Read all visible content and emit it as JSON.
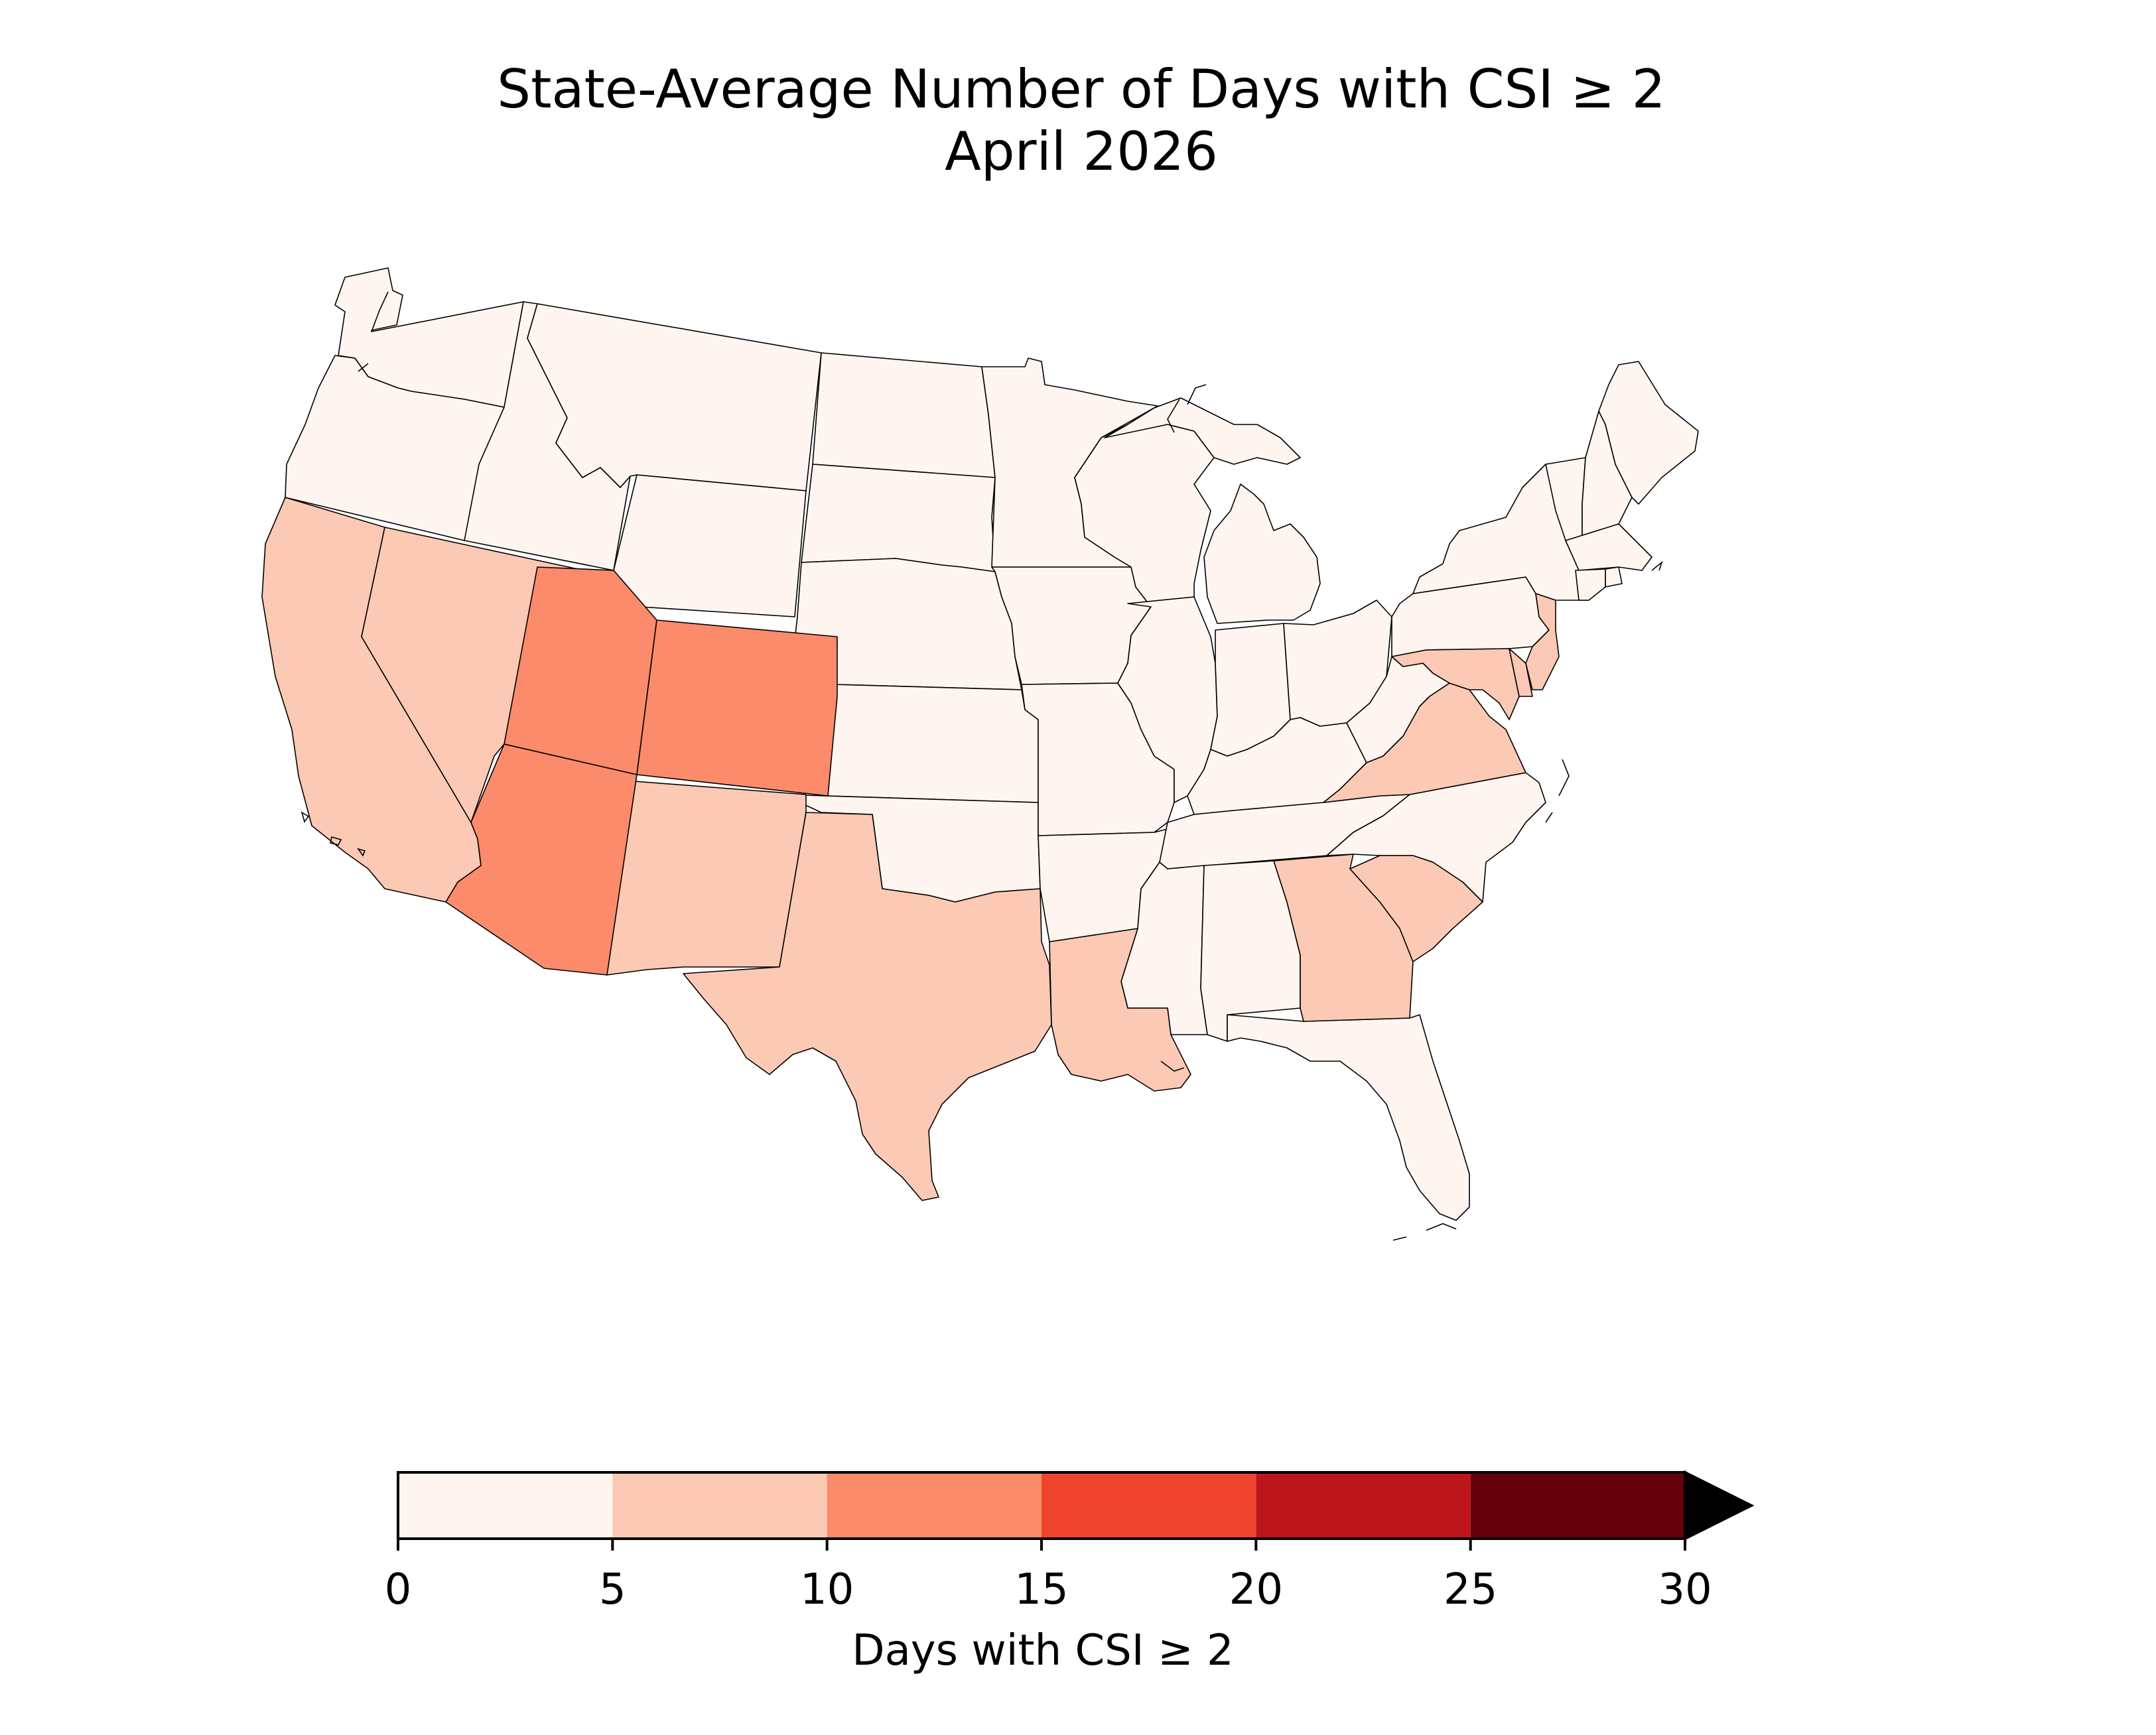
{
  "title": {
    "line1": "State-Average Number of Days with CSI ≥ 2",
    "line2": "April 2026"
  },
  "colorbar": {
    "label": "Days with CSI ≥ 2",
    "ticks": [
      "0",
      "5",
      "10",
      "15",
      "20",
      "25",
      "30"
    ],
    "bins": [
      {
        "range": [
          0,
          5
        ],
        "color": "#fff5f0"
      },
      {
        "range": [
          5,
          10
        ],
        "color": "#fcc9b4"
      },
      {
        "range": [
          10,
          15
        ],
        "color": "#fb8b6b"
      },
      {
        "range": [
          15,
          20
        ],
        "color": "#ef452f"
      },
      {
        "range": [
          20,
          25
        ],
        "color": "#bc151b"
      },
      {
        "range": [
          25,
          30
        ],
        "color": "#67000d"
      }
    ],
    "extend_color": "#000000"
  },
  "map_data": {
    "type": "choropleth",
    "region": "contiguous United States",
    "states": [
      {
        "state": "WA",
        "bin": "0-5"
      },
      {
        "state": "OR",
        "bin": "0-5"
      },
      {
        "state": "ID",
        "bin": "0-5"
      },
      {
        "state": "MT",
        "bin": "0-5"
      },
      {
        "state": "WY",
        "bin": "0-5"
      },
      {
        "state": "ND",
        "bin": "0-5"
      },
      {
        "state": "SD",
        "bin": "0-5"
      },
      {
        "state": "NE",
        "bin": "0-5"
      },
      {
        "state": "KS",
        "bin": "0-5"
      },
      {
        "state": "OK",
        "bin": "0-5"
      },
      {
        "state": "MN",
        "bin": "0-5"
      },
      {
        "state": "IA",
        "bin": "0-5"
      },
      {
        "state": "MO",
        "bin": "0-5"
      },
      {
        "state": "AR",
        "bin": "0-5"
      },
      {
        "state": "WI",
        "bin": "0-5"
      },
      {
        "state": "IL",
        "bin": "0-5"
      },
      {
        "state": "MI",
        "bin": "0-5"
      },
      {
        "state": "IN",
        "bin": "0-5"
      },
      {
        "state": "OH",
        "bin": "0-5"
      },
      {
        "state": "KY",
        "bin": "0-5"
      },
      {
        "state": "TN",
        "bin": "0-5"
      },
      {
        "state": "MS",
        "bin": "0-5"
      },
      {
        "state": "AL",
        "bin": "0-5"
      },
      {
        "state": "FL",
        "bin": "0-5"
      },
      {
        "state": "NC",
        "bin": "0-5"
      },
      {
        "state": "WV",
        "bin": "0-5"
      },
      {
        "state": "PA",
        "bin": "0-5"
      },
      {
        "state": "NY",
        "bin": "0-5"
      },
      {
        "state": "VT",
        "bin": "0-5"
      },
      {
        "state": "NH",
        "bin": "0-5"
      },
      {
        "state": "ME",
        "bin": "0-5"
      },
      {
        "state": "MA",
        "bin": "0-5"
      },
      {
        "state": "CT",
        "bin": "0-5"
      },
      {
        "state": "RI",
        "bin": "0-5"
      },
      {
        "state": "CA",
        "bin": "5-10"
      },
      {
        "state": "NV",
        "bin": "5-10"
      },
      {
        "state": "NM",
        "bin": "5-10"
      },
      {
        "state": "TX",
        "bin": "5-10"
      },
      {
        "state": "LA",
        "bin": "5-10"
      },
      {
        "state": "GA",
        "bin": "5-10"
      },
      {
        "state": "SC",
        "bin": "5-10"
      },
      {
        "state": "VA",
        "bin": "5-10"
      },
      {
        "state": "MD",
        "bin": "5-10"
      },
      {
        "state": "DE",
        "bin": "5-10"
      },
      {
        "state": "NJ",
        "bin": "5-10"
      },
      {
        "state": "UT",
        "bin": "10-15"
      },
      {
        "state": "CO",
        "bin": "10-15"
      },
      {
        "state": "AZ",
        "bin": "10-15"
      }
    ]
  }
}
